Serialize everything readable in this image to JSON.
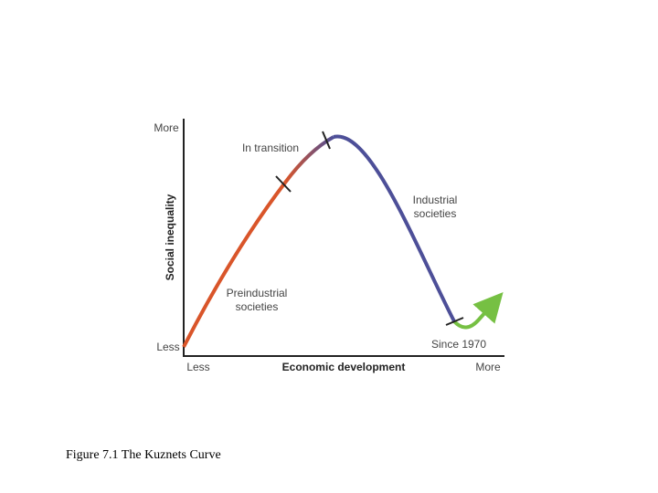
{
  "figure": {
    "y_axis": {
      "label": "Social inequality",
      "top": "More",
      "bottom": "Less"
    },
    "x_axis": {
      "label": "Economic development",
      "left": "Less",
      "right": "More"
    },
    "stages": [
      {
        "lines": [
          "Preindustrial",
          "societies"
        ]
      },
      {
        "lines": [
          "In transition"
        ]
      },
      {
        "lines": [
          "Industrial",
          "societies"
        ]
      },
      {
        "lines": [
          "Since 1970"
        ]
      }
    ]
  },
  "caption": "Figure 7.1 The Kuznets Curve"
}
